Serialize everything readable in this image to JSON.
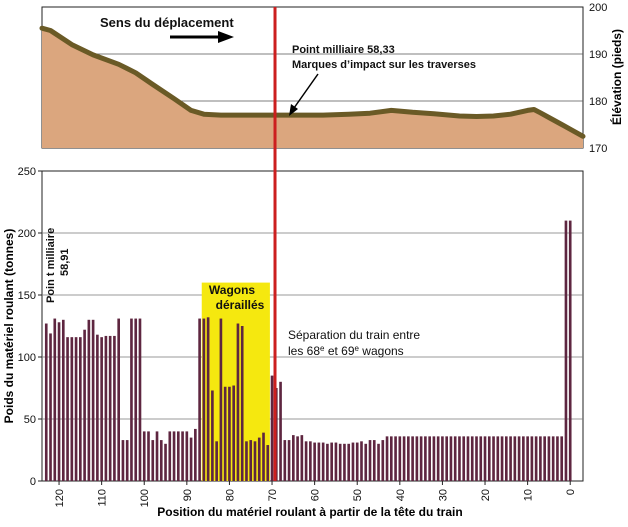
{
  "chart_data": [
    {
      "type": "area",
      "ylabel": "Élévation (pieds)",
      "ylim": [
        170,
        200
      ],
      "yticks": [
        170,
        180,
        190,
        200
      ],
      "x_range": [
        124,
        -3
      ],
      "series": [
        {
          "x": [
            126,
            122,
            117,
            112,
            106,
            102,
            98,
            93,
            89,
            86,
            82,
            76,
            70,
            64,
            58,
            52,
            47,
            42,
            37,
            32,
            26,
            22,
            18,
            14,
            10,
            8.5,
            7,
            5,
            2,
            -4
          ],
          "values": [
            195.5,
            195,
            192,
            189.8,
            187.8,
            186,
            183.5,
            180.5,
            178,
            177.2,
            177,
            177,
            177,
            177,
            177,
            177.2,
            177.4,
            178,
            177.6,
            177.3,
            176.8,
            176.7,
            176.8,
            177.2,
            178,
            178.2,
            177.5,
            176.5,
            175,
            172.5
          ]
        }
      ],
      "fill_color": "#dba67e",
      "line_color": "#6a5a26",
      "annotations": {
        "direction": "Sens du déplacement",
        "milepost_title": "Point milliaire 58,33",
        "milepost_subtitle": "Marques d’impact sur les traverses"
      }
    },
    {
      "type": "bar",
      "xlabel": "Position du matériel roulant à partir de la tête du train",
      "ylabel": "Poids du matériel roulant (tonnes)",
      "ylim": [
        0,
        250
      ],
      "yticks": [
        0,
        50,
        100,
        150,
        200,
        250
      ],
      "x_range": [
        124,
        -3
      ],
      "xticks": [
        120,
        110,
        100,
        90,
        80,
        70,
        60,
        50,
        40,
        30,
        20,
        10,
        0
      ],
      "grid": true,
      "bar_color": "#5e2640",
      "positions": [
        123,
        122,
        121,
        120,
        119,
        118,
        117,
        116,
        115,
        114,
        113,
        112,
        111,
        110,
        109,
        108,
        107,
        106,
        105,
        104,
        103,
        102,
        101,
        100,
        99,
        98,
        97,
        96,
        95,
        94,
        93,
        92,
        91,
        90,
        89,
        88,
        87,
        86,
        85,
        84,
        83,
        82,
        81,
        80,
        79,
        78,
        77,
        76,
        75,
        74,
        73,
        72,
        71,
        70,
        69,
        68,
        67,
        66,
        65,
        64,
        63,
        62,
        61,
        60,
        59,
        58,
        57,
        56,
        55,
        54,
        53,
        52,
        51,
        50,
        49,
        48,
        47,
        46,
        45,
        44,
        43,
        42,
        41,
        40,
        39,
        38,
        37,
        36,
        35,
        34,
        33,
        32,
        31,
        30,
        29,
        28,
        27,
        26,
        25,
        24,
        23,
        22,
        21,
        20,
        19,
        18,
        17,
        16,
        15,
        14,
        13,
        12,
        11,
        10,
        9,
        8,
        7,
        6,
        5,
        4,
        3,
        2,
        1,
        0
      ],
      "values": [
        127,
        119,
        131,
        128,
        130,
        116,
        116,
        116,
        116,
        122,
        130,
        130,
        118,
        116,
        117,
        117,
        117,
        131,
        33,
        33,
        131,
        131,
        131,
        40,
        40,
        33,
        40,
        33,
        30,
        40,
        40,
        40,
        40,
        40,
        35,
        42,
        131,
        131,
        132,
        73,
        32,
        131,
        76,
        76,
        77,
        127,
        125,
        32,
        33,
        32,
        35,
        39,
        29,
        85,
        75,
        80,
        33,
        33,
        37,
        36,
        37,
        32,
        32,
        31,
        31,
        31,
        30,
        31,
        31,
        30,
        30,
        30,
        31,
        31,
        32,
        30,
        33,
        33,
        30,
        33,
        36,
        36,
        36,
        36,
        36,
        36,
        36,
        36,
        36,
        36,
        36,
        36,
        36,
        36,
        36,
        36,
        36,
        36,
        36,
        36,
        36,
        36,
        36,
        36,
        36,
        36,
        36,
        36,
        36,
        36,
        36,
        36,
        36,
        36,
        36,
        36,
        36,
        36,
        36,
        36,
        36,
        36,
        210,
        210
      ],
      "highlight": {
        "x_from": 86.5,
        "x_to": 70.5,
        "y_from": 0,
        "y_to": 160,
        "color": "#f5e80f",
        "label_line1": "Wagons",
        "label_line2": "déraillés"
      },
      "annotations": {
        "milepost_line1": "Poin t milliaire",
        "milepost_line2": "58,91",
        "separation_line1": "Séparation du train entre",
        "separation_line2a": "les 68",
        "separation_sup1": "e",
        "separation_line2b": " et 69",
        "separation_sup2": "e",
        "separation_line2c": " wagons"
      }
    }
  ],
  "marker": {
    "x": 69.3,
    "color": "#cc1f1f"
  }
}
